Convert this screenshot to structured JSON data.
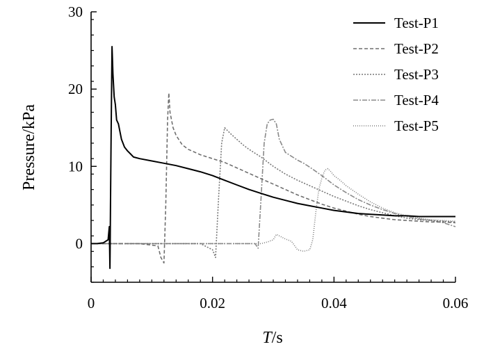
{
  "chart_data": {
    "type": "line",
    "title": "",
    "xlabel_italic": "T",
    "xlabel_unit": "/s",
    "ylabel": "Pressure/kPa",
    "xlim": [
      0,
      0.06
    ],
    "ylim": [
      -5,
      30
    ],
    "x_ticks": [
      0,
      0.02,
      0.04,
      0.06
    ],
    "x_tick_labels": [
      "0",
      "0.02",
      "0.04",
      "0.06"
    ],
    "y_ticks": [
      0,
      10,
      20,
      30
    ],
    "y_tick_labels": [
      "0",
      "10",
      "20",
      "30"
    ],
    "grid": false,
    "legend_position": "top-right",
    "series": [
      {
        "name": "Test-P1",
        "color": "#000000",
        "dash": "solid",
        "x": [
          0,
          0.001,
          0.002,
          0.0028,
          0.003,
          0.0031,
          0.00315,
          0.0032,
          0.0033,
          0.00345,
          0.0036,
          0.0038,
          0.004,
          0.0042,
          0.0045,
          0.005,
          0.0055,
          0.006,
          0.0065,
          0.007,
          0.008,
          0.01,
          0.012,
          0.014,
          0.016,
          0.018,
          0.02,
          0.022,
          0.024,
          0.026,
          0.028,
          0.03,
          0.032,
          0.034,
          0.036,
          0.038,
          0.04,
          0.042,
          0.044,
          0.046,
          0.048,
          0.05,
          0.052,
          0.054,
          0.056,
          0.058,
          0.06
        ],
        "y": [
          0,
          0,
          0.1,
          0.5,
          2.2,
          -3.2,
          0.5,
          5,
          14,
          25.5,
          22,
          19,
          18,
          16,
          15.5,
          13.5,
          12.5,
          12,
          11.6,
          11.2,
          11,
          10.7,
          10.4,
          10.1,
          9.7,
          9.3,
          8.8,
          8.2,
          7.6,
          7,
          6.5,
          6,
          5.6,
          5.2,
          4.9,
          4.6,
          4.3,
          4.1,
          3.9,
          3.8,
          3.7,
          3.6,
          3.6,
          3.5,
          3.5,
          3.5,
          3.5
        ]
      },
      {
        "name": "Test-P2",
        "color": "#6e6e6e",
        "dash": "5,3",
        "x": [
          0,
          0.008,
          0.011,
          0.0115,
          0.012,
          0.0123,
          0.0126,
          0.0128,
          0.013,
          0.0135,
          0.014,
          0.015,
          0.016,
          0.018,
          0.02,
          0.022,
          0.024,
          0.026,
          0.028,
          0.03,
          0.032,
          0.034,
          0.036,
          0.038,
          0.04,
          0.042,
          0.044,
          0.046,
          0.048,
          0.05,
          0.052,
          0.054,
          0.056,
          0.058,
          0.06
        ],
        "y": [
          0,
          0,
          -0.3,
          -1.8,
          -2.5,
          5,
          16,
          19.5,
          17,
          15,
          14,
          12.8,
          12.2,
          11.5,
          11,
          10.5,
          9.8,
          9.1,
          8.4,
          7.7,
          7,
          6.3,
          5.7,
          5.1,
          4.6,
          4.2,
          3.8,
          3.5,
          3.3,
          3.1,
          3,
          2.9,
          2.8,
          2.8,
          2.7
        ]
      },
      {
        "name": "Test-P3",
        "color": "#777777",
        "dash": "2,2",
        "x": [
          0,
          0.018,
          0.02,
          0.0205,
          0.021,
          0.0215,
          0.022,
          0.0225,
          0.023,
          0.024,
          0.025,
          0.026,
          0.027,
          0.028,
          0.03,
          0.032,
          0.034,
          0.036,
          0.038,
          0.04,
          0.042,
          0.044,
          0.046,
          0.048,
          0.05,
          0.052,
          0.054,
          0.056,
          0.058,
          0.06
        ],
        "y": [
          0,
          0,
          -0.8,
          -1.8,
          6,
          13,
          15,
          14.6,
          14.2,
          13.5,
          12.8,
          12.2,
          11.7,
          11.2,
          10,
          9,
          8.2,
          7.5,
          6.8,
          6.1,
          5.5,
          4.9,
          4.4,
          4,
          3.6,
          3.3,
          3.1,
          3,
          2.9,
          2.8
        ]
      },
      {
        "name": "Test-P4",
        "color": "#8a8a8a",
        "dash": "7,2,2,2",
        "x": [
          0,
          0.026,
          0.027,
          0.0275,
          0.028,
          0.0285,
          0.029,
          0.0295,
          0.03,
          0.0305,
          0.031,
          0.032,
          0.033,
          0.034,
          0.035,
          0.036,
          0.038,
          0.04,
          0.042,
          0.044,
          0.046,
          0.048,
          0.05,
          0.052,
          0.054,
          0.056,
          0.058,
          0.06
        ],
        "y": [
          0,
          0,
          0,
          -0.6,
          6,
          13,
          15.5,
          16,
          16.1,
          15.5,
          13.5,
          11.8,
          11.3,
          10.8,
          10.4,
          9.9,
          8.8,
          7.6,
          6.6,
          5.7,
          5,
          4.4,
          3.9,
          3.5,
          3.2,
          3,
          2.7,
          2.2
        ]
      },
      {
        "name": "Test-P5",
        "color": "#7c7c7c",
        "dash": "1,2",
        "x": [
          0,
          0.02,
          0.028,
          0.029,
          0.03,
          0.0305,
          0.031,
          0.032,
          0.033,
          0.034,
          0.035,
          0.036,
          0.0365,
          0.037,
          0.0375,
          0.038,
          0.0385,
          0.039,
          0.0395,
          0.04,
          0.041,
          0.042,
          0.044,
          0.046,
          0.048,
          0.05,
          0.052,
          0.054,
          0.056,
          0.058,
          0.06
        ],
        "y": [
          0,
          0,
          0,
          0.2,
          0.5,
          1.2,
          1,
          0.6,
          0.3,
          -0.8,
          -1,
          -0.8,
          0.5,
          4,
          7,
          8.5,
          9.5,
          9.7,
          9.3,
          8.8,
          8.2,
          7.5,
          6.4,
          5.4,
          4.6,
          4,
          3.6,
          3.3,
          3.1,
          3,
          2.9
        ]
      }
    ]
  }
}
